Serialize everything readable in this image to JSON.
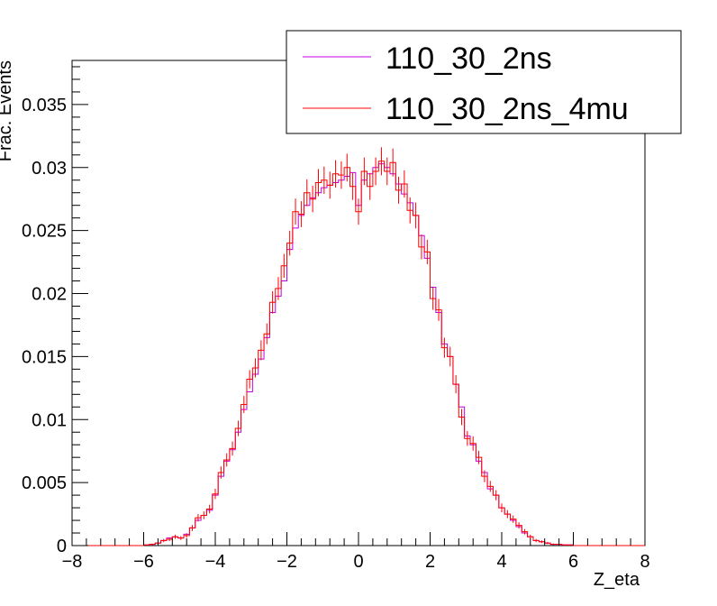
{
  "chart_data": {
    "type": "line",
    "title": "",
    "xlabel": "Z_eta",
    "ylabel": "Frac. Events",
    "xlim": [
      -8,
      8
    ],
    "ylim": [
      0,
      0.0385
    ],
    "xticks": [
      -8,
      -6,
      -4,
      -2,
      0,
      2,
      4,
      6,
      8
    ],
    "xtick_labels": [
      "−8",
      "−6",
      "−4",
      "−2",
      "0",
      "2",
      "4",
      "6",
      "8"
    ],
    "yticks": [
      0,
      0.005,
      0.01,
      0.015,
      0.02,
      0.025,
      0.03,
      0.035
    ],
    "ytick_labels": [
      "0",
      "0.005",
      "0.01",
      "0.015",
      "0.02",
      "0.025",
      "0.03",
      "0.035"
    ],
    "grid": false,
    "legend": "top-right",
    "bin_width": 0.16,
    "x_bin_centers": [
      -5.92,
      -5.76,
      -5.6,
      -5.44,
      -5.28,
      -5.12,
      -4.96,
      -4.8,
      -4.64,
      -4.48,
      -4.32,
      -4.16,
      -4.0,
      -3.84,
      -3.68,
      -3.52,
      -3.36,
      -3.2,
      -3.04,
      -2.88,
      -2.72,
      -2.56,
      -2.4,
      -2.24,
      -2.08,
      -1.92,
      -1.76,
      -1.6,
      -1.44,
      -1.28,
      -1.12,
      -0.96,
      -0.8,
      -0.64,
      -0.48,
      -0.32,
      -0.16,
      0.0,
      0.16,
      0.32,
      0.48,
      0.64,
      0.8,
      0.96,
      1.12,
      1.28,
      1.44,
      1.6,
      1.76,
      1.92,
      2.08,
      2.24,
      2.4,
      2.56,
      2.72,
      2.88,
      3.04,
      3.2,
      3.36,
      3.52,
      3.68,
      3.84,
      4.0,
      4.16,
      4.32,
      4.48,
      4.64,
      4.8,
      4.96,
      5.12,
      5.28,
      5.44,
      5.6,
      5.76,
      5.92
    ],
    "series": [
      {
        "name": "110_30_2ns",
        "color": "#c000e0",
        "values": [
          5e-05,
          0.0001,
          0.0002,
          0.0004,
          0.0006,
          0.0007,
          0.0006,
          0.0009,
          0.0014,
          0.002,
          0.0024,
          0.0028,
          0.004,
          0.0055,
          0.0067,
          0.0076,
          0.009,
          0.0108,
          0.0122,
          0.0136,
          0.0148,
          0.0165,
          0.0185,
          0.0198,
          0.021,
          0.0235,
          0.0252,
          0.0262,
          0.027,
          0.0276,
          0.028,
          0.0284,
          0.0286,
          0.0288,
          0.029,
          0.0293,
          0.0296,
          0.027,
          0.029,
          0.0295,
          0.03,
          0.0303,
          0.03,
          0.0295,
          0.0287,
          0.0279,
          0.0272,
          0.0262,
          0.0246,
          0.0228,
          0.0205,
          0.0185,
          0.016,
          0.015,
          0.0128,
          0.011,
          0.0087,
          0.008,
          0.0067,
          0.0058,
          0.0045,
          0.004,
          0.003,
          0.0025,
          0.002,
          0.0015,
          0.001,
          0.0007,
          0.0004,
          0.0003,
          0.0002,
          0.0001,
          0.0001,
          5e-05,
          5e-05
        ]
      },
      {
        "name": "110_30_2ns_4mu",
        "color": "#ff0000",
        "values": [
          5e-05,
          0.0001,
          0.0002,
          0.0004,
          0.0005,
          0.0007,
          0.0006,
          0.0008,
          0.0014,
          0.0022,
          0.0024,
          0.0029,
          0.0041,
          0.0058,
          0.0068,
          0.0077,
          0.0093,
          0.0112,
          0.0132,
          0.0141,
          0.0155,
          0.0168,
          0.0193,
          0.0204,
          0.0222,
          0.024,
          0.0265,
          0.0263,
          0.028,
          0.0275,
          0.0288,
          0.029,
          0.0286,
          0.0295,
          0.0294,
          0.03,
          0.0285,
          0.0265,
          0.0297,
          0.0285,
          0.0297,
          0.0305,
          0.0297,
          0.0304,
          0.0282,
          0.0287,
          0.0266,
          0.0262,
          0.0237,
          0.0233,
          0.0196,
          0.0187,
          0.0157,
          0.015,
          0.0128,
          0.0102,
          0.0085,
          0.0081,
          0.007,
          0.0055,
          0.0047,
          0.004,
          0.003,
          0.0025,
          0.0021,
          0.0016,
          0.0011,
          0.0007,
          0.0004,
          0.0003,
          0.0002,
          0.0001,
          0.0001,
          5e-05,
          5e-05
        ],
        "error_bars": true
      }
    ]
  }
}
